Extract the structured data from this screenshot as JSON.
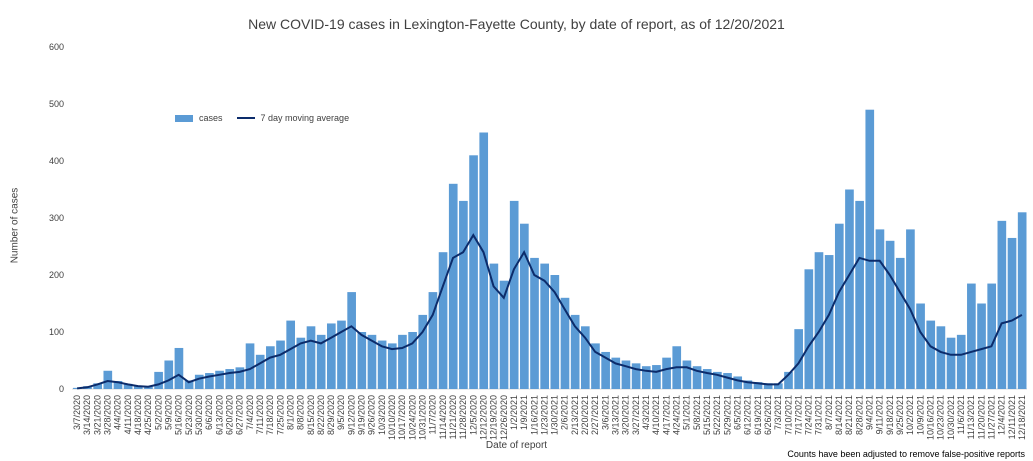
{
  "chart_data": {
    "type": "bar",
    "title": "New COVID-19 cases in Lexington-Fayette County, by date of report, as of 12/20/2021",
    "xlabel": "Date of report",
    "ylabel": "Number of cases",
    "ylim": [
      0,
      600
    ],
    "yticks": [
      0,
      100,
      200,
      300,
      400,
      500,
      600
    ],
    "legend": {
      "placement": "top-left",
      "cases": "cases",
      "ma": "7 day moving average"
    },
    "note": "Counts have been adjusted to remove false-positive reports",
    "colors": {
      "cases": "#5b9bd5",
      "ma": "#0c2c6b"
    },
    "categories": [
      "3/7/2020",
      "3/14/2020",
      "3/21/2020",
      "3/28/2020",
      "4/4/2020",
      "4/11/2020",
      "4/18/2020",
      "4/25/2020",
      "5/2/2020",
      "5/9/2020",
      "5/16/2020",
      "5/23/2020",
      "5/30/2020",
      "6/6/2020",
      "6/13/2020",
      "6/20/2020",
      "6/27/2020",
      "7/4/2020",
      "7/11/2020",
      "7/18/2020",
      "7/25/2020",
      "8/1/2020",
      "8/8/2020",
      "8/15/2020",
      "8/22/2020",
      "8/29/2020",
      "9/5/2020",
      "9/12/2020",
      "9/19/2020",
      "9/26/2020",
      "10/3/2020",
      "10/10/2020",
      "10/17/2020",
      "10/24/2020",
      "10/31/2020",
      "11/7/2020",
      "11/14/2020",
      "11/21/2020",
      "11/28/2020",
      "12/5/2020",
      "12/12/2020",
      "12/19/2020",
      "12/26/2020",
      "1/2/2021",
      "1/9/2021",
      "1/16/2021",
      "1/23/2021",
      "1/30/2021",
      "2/6/2021",
      "2/13/2021",
      "2/20/2021",
      "2/27/2021",
      "3/6/2021",
      "3/13/2021",
      "3/20/2021",
      "3/27/2021",
      "4/3/2021",
      "4/10/2021",
      "4/17/2021",
      "4/24/2021",
      "5/1/2021",
      "5/8/2021",
      "5/15/2021",
      "5/22/2021",
      "5/29/2021",
      "6/5/2021",
      "6/12/2021",
      "6/19/2021",
      "6/26/2021",
      "7/3/2021",
      "7/10/2021",
      "7/17/2021",
      "7/24/2021",
      "7/31/2021",
      "8/7/2021",
      "8/14/2021",
      "8/21/2021",
      "8/28/2021",
      "9/4/2021",
      "9/11/2021",
      "9/18/2021",
      "9/25/2021",
      "10/2/2021",
      "10/9/2021",
      "10/16/2021",
      "10/23/2021",
      "10/30/2021",
      "11/6/2021",
      "11/13/2021",
      "11/20/2021",
      "11/27/2021",
      "12/4/2021",
      "12/11/2021",
      "12/18/2021"
    ],
    "series": [
      {
        "name": "cases",
        "values": [
          2,
          5,
          10,
          32,
          14,
          9,
          6,
          5,
          30,
          50,
          72,
          15,
          25,
          28,
          32,
          35,
          38,
          80,
          60,
          75,
          85,
          120,
          90,
          110,
          95,
          115,
          120,
          170,
          100,
          95,
          85,
          80,
          95,
          100,
          130,
          170,
          240,
          360,
          330,
          410,
          450,
          220,
          190,
          330,
          290,
          230,
          220,
          200,
          160,
          130,
          110,
          80,
          65,
          55,
          50,
          45,
          40,
          42,
          55,
          75,
          50,
          40,
          35,
          30,
          28,
          22,
          15,
          12,
          10,
          10,
          30,
          105,
          210,
          240,
          235,
          290,
          350,
          330,
          490,
          280,
          260,
          230,
          280,
          150,
          120,
          110,
          90,
          95,
          185,
          150,
          185,
          295,
          265,
          310
        ]
      },
      {
        "name": "7 day moving average",
        "values": [
          1,
          3,
          8,
          14,
          12,
          8,
          5,
          4,
          8,
          15,
          25,
          12,
          18,
          22,
          25,
          28,
          30,
          35,
          45,
          55,
          60,
          70,
          80,
          85,
          80,
          90,
          100,
          110,
          95,
          85,
          75,
          70,
          72,
          80,
          100,
          130,
          180,
          230,
          240,
          270,
          240,
          180,
          160,
          210,
          240,
          200,
          190,
          170,
          140,
          110,
          90,
          65,
          55,
          45,
          40,
          35,
          32,
          30,
          35,
          38,
          38,
          32,
          28,
          25,
          20,
          15,
          12,
          10,
          8,
          8,
          25,
          45,
          75,
          100,
          130,
          170,
          200,
          230,
          225,
          225,
          200,
          170,
          140,
          100,
          75,
          65,
          60,
          60,
          65,
          70,
          75,
          115,
          120,
          130
        ]
      }
    ]
  }
}
